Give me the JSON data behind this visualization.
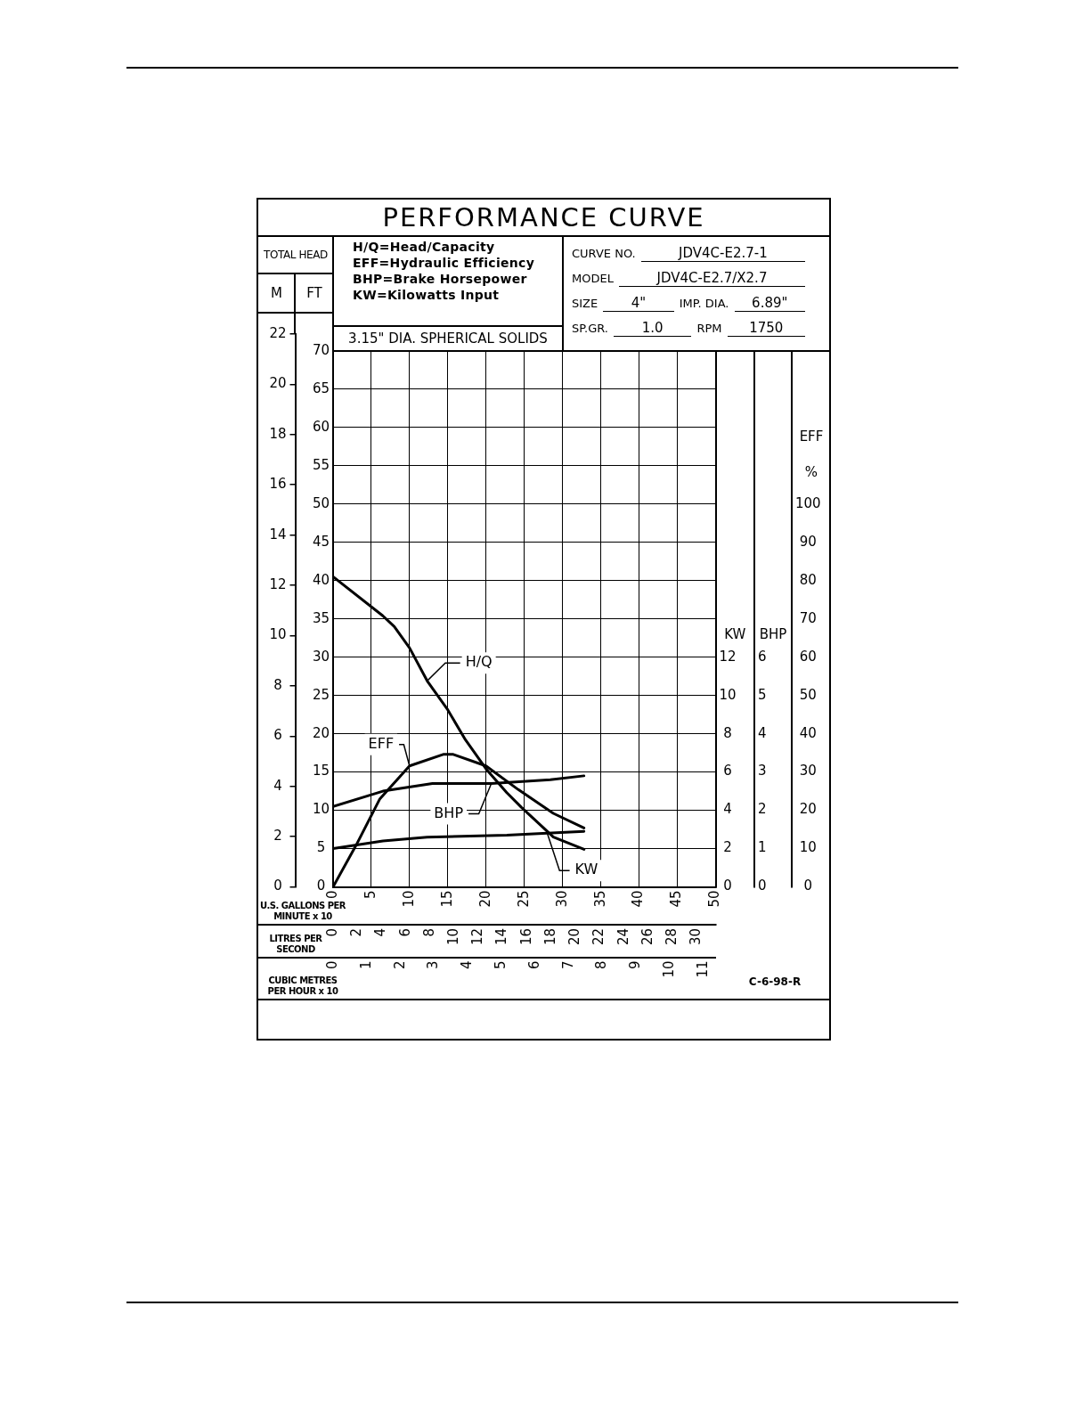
{
  "chart_data": [
    {
      "type": "line",
      "title": "PERFORMANCE CURVE",
      "xlabel": "U.S. GALLONS PER MINUTE x 10",
      "x2label": "LITRES PER SECOND",
      "ylabel": "FT",
      "y2label": "M",
      "annotations": [
        "TOTAL HEAD",
        "H/Q=Head/Capacity",
        "EFF=Hydraulic Efficiency",
        "BHP=Brake Horsepower",
        "KW=Kilowatts Input",
        "3.15\" DIA. SPHERICAL SOLIDS",
        "CURVE NO.",
        "JDV4C-E2.7-1",
        "MODEL",
        "JDV4C-E2.7/X2.7",
        "SIZE",
        "4\"",
        "IMP. DIA.",
        "6.89\"",
        "SP.GR.",
        "1.0",
        "RPM",
        "1750",
        "C-6-98-R"
      ],
      "xlim": [
        0,
        50
      ],
      "xticks": [
        0,
        5,
        10,
        15,
        20,
        25,
        30,
        35,
        40,
        45,
        50
      ],
      "x2lim": [
        0,
        31.55
      ],
      "x2ticks": [
        0,
        2,
        4,
        6,
        8,
        10,
        12,
        14,
        16,
        18,
        20,
        22,
        24,
        26,
        28,
        30
      ],
      "ylim": [
        0,
        72.2
      ],
      "yticks": [
        0,
        5,
        10,
        15,
        20,
        25,
        30,
        35,
        40,
        45,
        50,
        55,
        60,
        65,
        70
      ],
      "y2lim": [
        0,
        22
      ],
      "y2ticks": [
        0,
        2,
        4,
        6,
        8,
        10,
        12,
        14,
        16,
        18,
        20,
        22
      ],
      "grid": true,
      "legend": false,
      "marker": "none",
      "line_style": "solid",
      "series": [
        {
          "name": "H/Q",
          "color": "#000000",
          "x": [
            0,
            6.5,
            8,
            10,
            12.3,
            15,
            17.3,
            20,
            22.7,
            24.6,
            28.8,
            32.8
          ],
          "values": [
            40.5,
            35.4,
            34,
            31.2,
            26.9,
            23.1,
            19.2,
            15.4,
            12.3,
            10.4,
            6.5,
            4.9
          ]
        }
      ]
    },
    {
      "type": "line",
      "xlabel": "CUBIC METRES PER HOUR x 10",
      "ylabel": "EFF %",
      "y2label": "KW",
      "y3label": "BHP",
      "xlim": [
        0,
        11.36
      ],
      "xticks": [
        0,
        1,
        2,
        3,
        4,
        5,
        6,
        7,
        8,
        9,
        10,
        11
      ],
      "ylim": [
        0,
        144.4
      ],
      "yticks": [
        0,
        10,
        20,
        30,
        40,
        50,
        60,
        70,
        80,
        90,
        100
      ],
      "y2lim": [
        0,
        28.88
      ],
      "y2ticks": [
        0,
        2,
        4,
        6,
        8,
        10,
        12
      ],
      "y3lim": [
        0,
        14.44
      ],
      "y3ticks": [
        0,
        1,
        2,
        3,
        4,
        5,
        6
      ],
      "legend": false,
      "marker": "none",
      "line_style": "solid",
      "series": [
        {
          "name": "EFF",
          "color": "#000000",
          "x": [
            0,
            0.68,
            1.39,
            2.27,
            3.27,
            3.57,
            4.54,
            5.5,
            6.54,
            7.45
          ],
          "values": [
            0,
            10.8,
            23,
            31.6,
            34.6,
            34.6,
            31.6,
            25.4,
            19.2,
            15.4
          ]
        },
        {
          "name": "BHP",
          "color": "#000000",
          "axis": "y3",
          "x": [
            0,
            1.48,
            2.95,
            4.7,
            6.45,
            7.45
          ],
          "values": [
            2.1,
            2.5,
            2.7,
            2.7,
            2.8,
            2.9
          ]
        },
        {
          "name": "KW",
          "color": "#000000",
          "axis": "y2",
          "x": [
            0,
            1.48,
            2.79,
            5.16,
            6.36,
            7.45
          ],
          "values": [
            2.0,
            2.4,
            2.6,
            2.7,
            2.8,
            2.9
          ]
        }
      ]
    }
  ]
}
